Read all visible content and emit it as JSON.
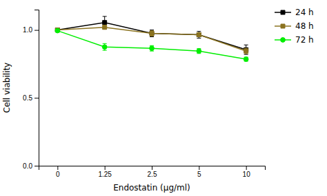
{
  "chart_data": {
    "type": "line",
    "x_label": "Endostatin (μg/ml)",
    "y_label": "Cell viability",
    "categories": [
      "0",
      "1.25",
      "2.5",
      "5",
      "10"
    ],
    "series": [
      {
        "name": "24 h",
        "color": "#000000",
        "marker": "square",
        "line_style": "solid",
        "values": [
          1.0,
          1.055,
          0.975,
          0.965,
          0.855
        ],
        "errors": [
          0.01,
          0.045,
          0.025,
          0.025,
          0.035
        ]
      },
      {
        "name": "48 h",
        "color": "#8B7320",
        "marker": "square",
        "line_style": "solid",
        "values": [
          1.0,
          1.02,
          0.975,
          0.965,
          0.845
        ],
        "errors": [
          0.01,
          0.015,
          0.02,
          0.015,
          0.02
        ]
      },
      {
        "name": "72 h",
        "color": "#00ee00",
        "marker": "circle",
        "line_style": "solid",
        "values": [
          0.995,
          0.875,
          0.865,
          0.845,
          0.785
        ],
        "errors": [
          0.008,
          0.025,
          0.02,
          0.018,
          0.015
        ]
      }
    ],
    "ylim": [
      0.0,
      1.15
    ],
    "yticks": [
      {
        "value": 0.0,
        "label": "0.0"
      },
      0.5,
      {
        "value": 1.0,
        "label": "1.0"
      }
    ],
    "grid": false,
    "legend": "right"
  }
}
